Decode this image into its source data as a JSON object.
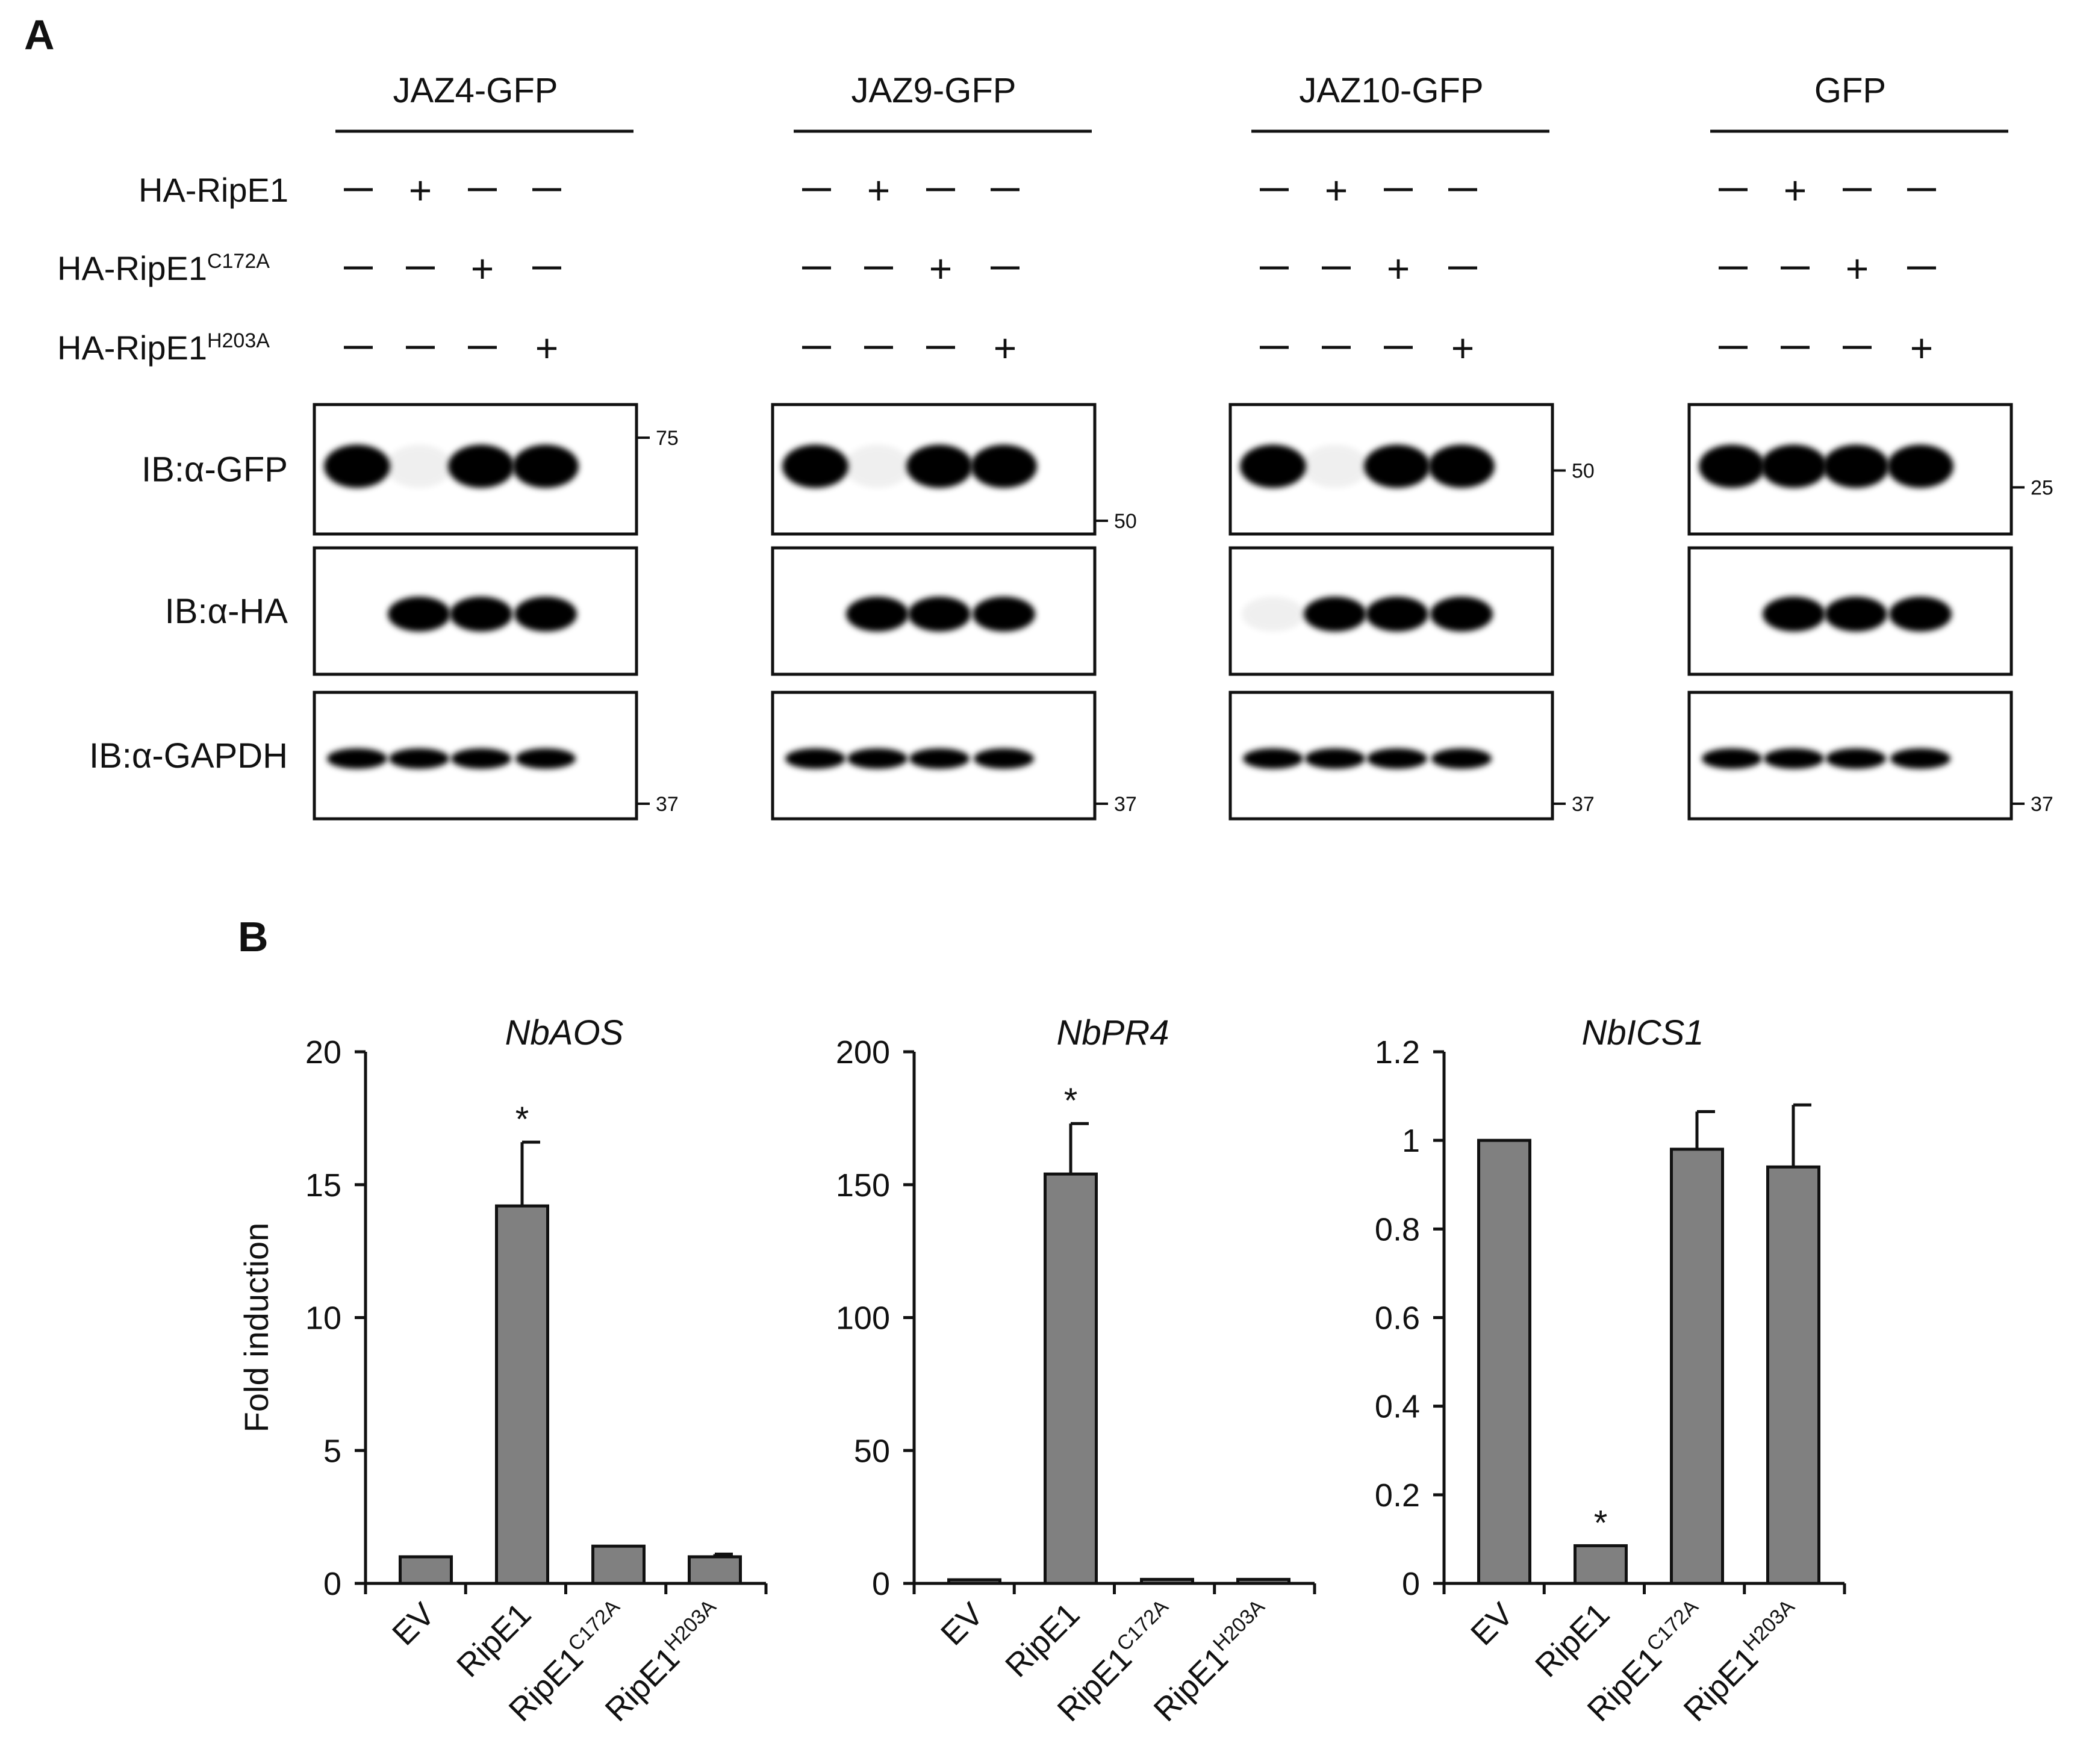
{
  "panel_a": {
    "label": "A",
    "row_labels": [
      {
        "text": "HA-RipE1",
        "sup": ""
      },
      {
        "text": "HA-RipE1",
        "sup": "C172A"
      },
      {
        "text": "HA-RipE1",
        "sup": "H203A"
      }
    ],
    "sign_rows": [
      [
        "–",
        "+",
        "–",
        "–"
      ],
      [
        "–",
        "–",
        "+",
        "–"
      ],
      [
        "–",
        "–",
        "–",
        "+"
      ]
    ],
    "blot_labels": [
      "IB:α-GFP",
      "IB:α-HA",
      "IB:α-GAPDH"
    ],
    "groups": [
      {
        "title": "JAZ4-GFP",
        "markers": [
          [
            "75"
          ],
          [],
          [
            "37"
          ]
        ],
        "bands": {
          "gfp": [
            1,
            0.05,
            1,
            1
          ],
          "ha": [
            0,
            1,
            1,
            1
          ],
          "gapdh": [
            1,
            1,
            1,
            1
          ]
        }
      },
      {
        "title": "JAZ9-GFP",
        "markers": [
          [
            "50"
          ],
          [],
          [
            "37"
          ]
        ],
        "bands": {
          "gfp": [
            1,
            0.03,
            1,
            1
          ],
          "ha": [
            0,
            1,
            1,
            1
          ],
          "gapdh": [
            1,
            1,
            1,
            1
          ]
        }
      },
      {
        "title": "JAZ10-GFP",
        "markers": [
          [
            "50"
          ],
          [],
          [
            "37"
          ]
        ],
        "bands": {
          "gfp": [
            1,
            0.05,
            1,
            1
          ],
          "ha": [
            0.05,
            1,
            1,
            1
          ],
          "gapdh": [
            1,
            1,
            1,
            1
          ]
        }
      },
      {
        "title": "GFP",
        "markers": [
          [
            "25"
          ],
          [],
          [
            "37"
          ]
        ],
        "bands": {
          "gfp": [
            1,
            1,
            1,
            1
          ],
          "ha": [
            0,
            1,
            1,
            1
          ],
          "gapdh": [
            1,
            1,
            1,
            1
          ]
        }
      }
    ]
  },
  "panel_b": {
    "label": "B",
    "bar_color": "#808080",
    "chart_data": [
      {
        "type": "bar",
        "title": "NbAOS",
        "ylabel": "Fold induction",
        "categories": [
          {
            "text": "EV",
            "sup": ""
          },
          {
            "text": "RipE1",
            "sup": ""
          },
          {
            "text": "RipE1",
            "sup": "C172A"
          },
          {
            "text": "RipE1",
            "sup": "H203A"
          }
        ],
        "values": [
          1.0,
          14.2,
          1.4,
          1.0
        ],
        "errors": [
          0,
          2.4,
          0,
          0.1
        ],
        "significance": [
          "",
          "*",
          "",
          ""
        ],
        "ylim": [
          0,
          20
        ],
        "yticks": [
          "0",
          "5",
          "10",
          "15",
          "20"
        ]
      },
      {
        "type": "bar",
        "title": "NbPR4",
        "ylabel": "",
        "categories": [
          {
            "text": "EV",
            "sup": ""
          },
          {
            "text": "RipE1",
            "sup": ""
          },
          {
            "text": "RipE1",
            "sup": "C172A"
          },
          {
            "text": "RipE1",
            "sup": "H203A"
          }
        ],
        "values": [
          1.0,
          154,
          1.5,
          1.5
        ],
        "errors": [
          0,
          19,
          0,
          0
        ],
        "significance": [
          "",
          "*",
          "",
          ""
        ],
        "ylim": [
          0,
          200
        ],
        "yticks": [
          "0",
          "50",
          "100",
          "150",
          "200"
        ]
      },
      {
        "type": "bar",
        "title": "NbICS1",
        "ylabel": "",
        "categories": [
          {
            "text": "EV",
            "sup": ""
          },
          {
            "text": "RipE1",
            "sup": ""
          },
          {
            "text": "RipE1",
            "sup": "C172A"
          },
          {
            "text": "RipE1",
            "sup": "H203A"
          }
        ],
        "values": [
          1.0,
          0.085,
          0.98,
          0.94
        ],
        "errors": [
          0,
          0,
          0.085,
          0.14
        ],
        "significance": [
          "",
          "*",
          "",
          ""
        ],
        "ylim": [
          0,
          1.2
        ],
        "yticks": [
          "0",
          "0.2",
          "0.4",
          "0.6",
          "0.8",
          "1",
          "1.2"
        ]
      }
    ]
  }
}
